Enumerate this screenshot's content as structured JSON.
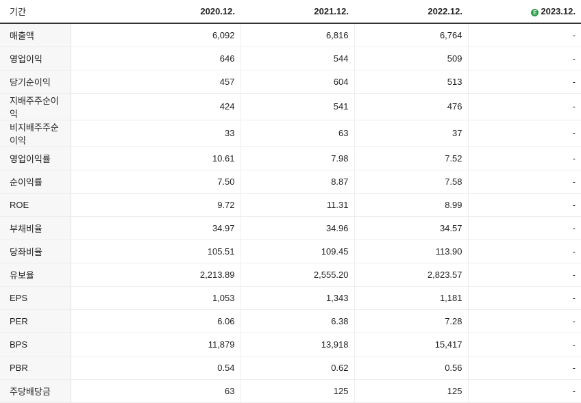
{
  "header": {
    "period_label": "기간",
    "years": [
      "2020.12.",
      "2021.12.",
      "2022.12.",
      "2023.12."
    ],
    "estimate_icon": "E"
  },
  "rows": [
    {
      "label": "매출액",
      "values": [
        "6,092",
        "6,816",
        "6,764",
        "-"
      ]
    },
    {
      "label": "영업이익",
      "values": [
        "646",
        "544",
        "509",
        "-"
      ]
    },
    {
      "label": "당기순이익",
      "values": [
        "457",
        "604",
        "513",
        "-"
      ]
    },
    {
      "label": "지배주주순이익",
      "values": [
        "424",
        "541",
        "476",
        "-"
      ]
    },
    {
      "label": "비지배주주순이익",
      "values": [
        "33",
        "63",
        "37",
        "-"
      ]
    },
    {
      "label": "영업이익률",
      "values": [
        "10.61",
        "7.98",
        "7.52",
        "-"
      ]
    },
    {
      "label": "순이익률",
      "values": [
        "7.50",
        "8.87",
        "7.58",
        "-"
      ]
    },
    {
      "label": "ROE",
      "values": [
        "9.72",
        "11.31",
        "8.99",
        "-"
      ]
    },
    {
      "label": "부채비율",
      "values": [
        "34.97",
        "34.96",
        "34.57",
        "-"
      ]
    },
    {
      "label": "당좌비율",
      "values": [
        "105.51",
        "109.45",
        "113.90",
        "-"
      ]
    },
    {
      "label": "유보율",
      "values": [
        "2,213.89",
        "2,555.20",
        "2,823.57",
        "-"
      ]
    },
    {
      "label": "EPS",
      "values": [
        "1,053",
        "1,343",
        "1,181",
        "-"
      ]
    },
    {
      "label": "PER",
      "values": [
        "6.06",
        "6.38",
        "7.28",
        "-"
      ]
    },
    {
      "label": "BPS",
      "values": [
        "11,879",
        "13,918",
        "15,417",
        "-"
      ]
    },
    {
      "label": "PBR",
      "values": [
        "0.54",
        "0.62",
        "0.56",
        "-"
      ]
    },
    {
      "label": "주당배당금",
      "values": [
        "63",
        "125",
        "125",
        "-"
      ]
    }
  ],
  "colors": {
    "estimate_badge": "#2d9a4a"
  }
}
